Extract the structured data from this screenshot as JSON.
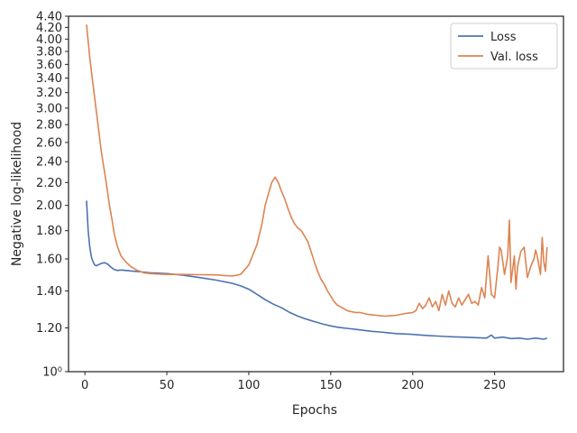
{
  "chart_data": {
    "type": "line",
    "title": "",
    "xlabel": "Epochs",
    "ylabel": "Negative log-likelihood",
    "xlim": [
      -10,
      292
    ],
    "ylim": [
      1.0,
      4.4
    ],
    "yscale": "log",
    "grid": false,
    "legend_position": "top-right",
    "xticks": [
      0,
      50,
      100,
      150,
      200,
      250
    ],
    "yticks": [
      {
        "value": 1.0,
        "label": "10⁰"
      },
      {
        "value": 1.2,
        "label": "1.20"
      },
      {
        "value": 1.4,
        "label": "1.40"
      },
      {
        "value": 1.6,
        "label": "1.60"
      },
      {
        "value": 1.8,
        "label": "1.80"
      },
      {
        "value": 2.0,
        "label": "2.00"
      },
      {
        "value": 2.2,
        "label": "2.20"
      },
      {
        "value": 2.4,
        "label": "2.40"
      },
      {
        "value": 2.6,
        "label": "2.60"
      },
      {
        "value": 2.8,
        "label": "2.80"
      },
      {
        "value": 3.0,
        "label": "3.00"
      },
      {
        "value": 3.2,
        "label": "3.20"
      },
      {
        "value": 3.4,
        "label": "3.40"
      },
      {
        "value": 3.6,
        "label": "3.60"
      },
      {
        "value": 3.8,
        "label": "3.80"
      },
      {
        "value": 4.0,
        "label": "4.00"
      },
      {
        "value": 4.2,
        "label": "4.20"
      },
      {
        "value": 4.4,
        "label": "4.40"
      }
    ],
    "series": [
      {
        "name": "Loss",
        "color": "#4c72b0",
        "x": [
          1,
          2,
          3,
          4,
          5,
          6,
          7,
          8,
          10,
          12,
          14,
          16,
          18,
          20,
          22,
          25,
          30,
          35,
          40,
          50,
          60,
          70,
          80,
          90,
          95,
          100,
          105,
          110,
          115,
          120,
          125,
          130,
          135,
          140,
          145,
          150,
          155,
          160,
          165,
          170,
          175,
          180,
          185,
          190,
          195,
          200,
          205,
          210,
          215,
          220,
          225,
          230,
          235,
          240,
          245,
          248,
          250,
          255,
          260,
          265,
          270,
          275,
          280,
          282
        ],
        "y": [
          2.04,
          1.8,
          1.68,
          1.61,
          1.58,
          1.56,
          1.555,
          1.56,
          1.57,
          1.575,
          1.565,
          1.545,
          1.53,
          1.525,
          1.528,
          1.525,
          1.52,
          1.515,
          1.51,
          1.505,
          1.495,
          1.48,
          1.465,
          1.445,
          1.43,
          1.41,
          1.38,
          1.35,
          1.325,
          1.305,
          1.28,
          1.26,
          1.245,
          1.232,
          1.22,
          1.21,
          1.203,
          1.198,
          1.193,
          1.188,
          1.183,
          1.18,
          1.176,
          1.172,
          1.17,
          1.168,
          1.165,
          1.162,
          1.16,
          1.158,
          1.156,
          1.155,
          1.153,
          1.152,
          1.15,
          1.165,
          1.15,
          1.155,
          1.148,
          1.15,
          1.145,
          1.15,
          1.145,
          1.15
        ]
      },
      {
        "name": "Val. loss",
        "color": "#dd8452",
        "x": [
          1,
          3,
          5,
          8,
          10,
          13,
          15,
          17,
          18,
          20,
          22,
          25,
          28,
          32,
          36,
          40,
          45,
          50,
          60,
          70,
          80,
          85,
          90,
          95,
          100,
          105,
          108,
          110,
          112,
          114,
          116,
          118,
          120,
          122,
          124,
          126,
          128,
          130,
          132,
          134,
          136,
          138,
          140,
          142,
          144,
          146,
          148,
          150,
          152,
          154,
          156,
          158,
          160,
          162,
          165,
          168,
          170,
          172,
          175,
          178,
          180,
          183,
          186,
          190,
          193,
          196,
          200,
          202,
          204,
          206,
          208,
          210,
          212,
          214,
          216,
          218,
          220,
          222,
          224,
          226,
          228,
          230,
          232,
          234,
          236,
          238,
          240,
          242,
          244,
          246,
          247,
          248,
          250,
          252,
          253,
          254,
          256,
          258,
          259,
          260,
          262,
          263,
          264,
          266,
          268,
          270,
          272,
          274,
          275,
          276,
          278,
          279,
          280,
          281,
          282
        ],
        "y": [
          4.25,
          3.7,
          3.3,
          2.8,
          2.5,
          2.2,
          2.0,
          1.85,
          1.77,
          1.68,
          1.62,
          1.58,
          1.55,
          1.525,
          1.51,
          1.505,
          1.502,
          1.5,
          1.5,
          1.498,
          1.497,
          1.493,
          1.49,
          1.5,
          1.56,
          1.7,
          1.85,
          2.0,
          2.1,
          2.2,
          2.25,
          2.2,
          2.12,
          2.05,
          1.97,
          1.9,
          1.85,
          1.82,
          1.8,
          1.76,
          1.72,
          1.65,
          1.58,
          1.52,
          1.47,
          1.44,
          1.4,
          1.37,
          1.34,
          1.32,
          1.31,
          1.3,
          1.29,
          1.285,
          1.28,
          1.28,
          1.275,
          1.27,
          1.268,
          1.265,
          1.262,
          1.26,
          1.262,
          1.265,
          1.27,
          1.275,
          1.28,
          1.29,
          1.33,
          1.3,
          1.32,
          1.36,
          1.31,
          1.34,
          1.29,
          1.38,
          1.32,
          1.4,
          1.33,
          1.31,
          1.36,
          1.32,
          1.35,
          1.38,
          1.33,
          1.34,
          1.32,
          1.42,
          1.36,
          1.62,
          1.5,
          1.38,
          1.36,
          1.55,
          1.68,
          1.66,
          1.5,
          1.62,
          1.88,
          1.45,
          1.62,
          1.41,
          1.55,
          1.65,
          1.68,
          1.48,
          1.55,
          1.6,
          1.66,
          1.62,
          1.5,
          1.75,
          1.58,
          1.52,
          1.68
        ]
      }
    ]
  }
}
